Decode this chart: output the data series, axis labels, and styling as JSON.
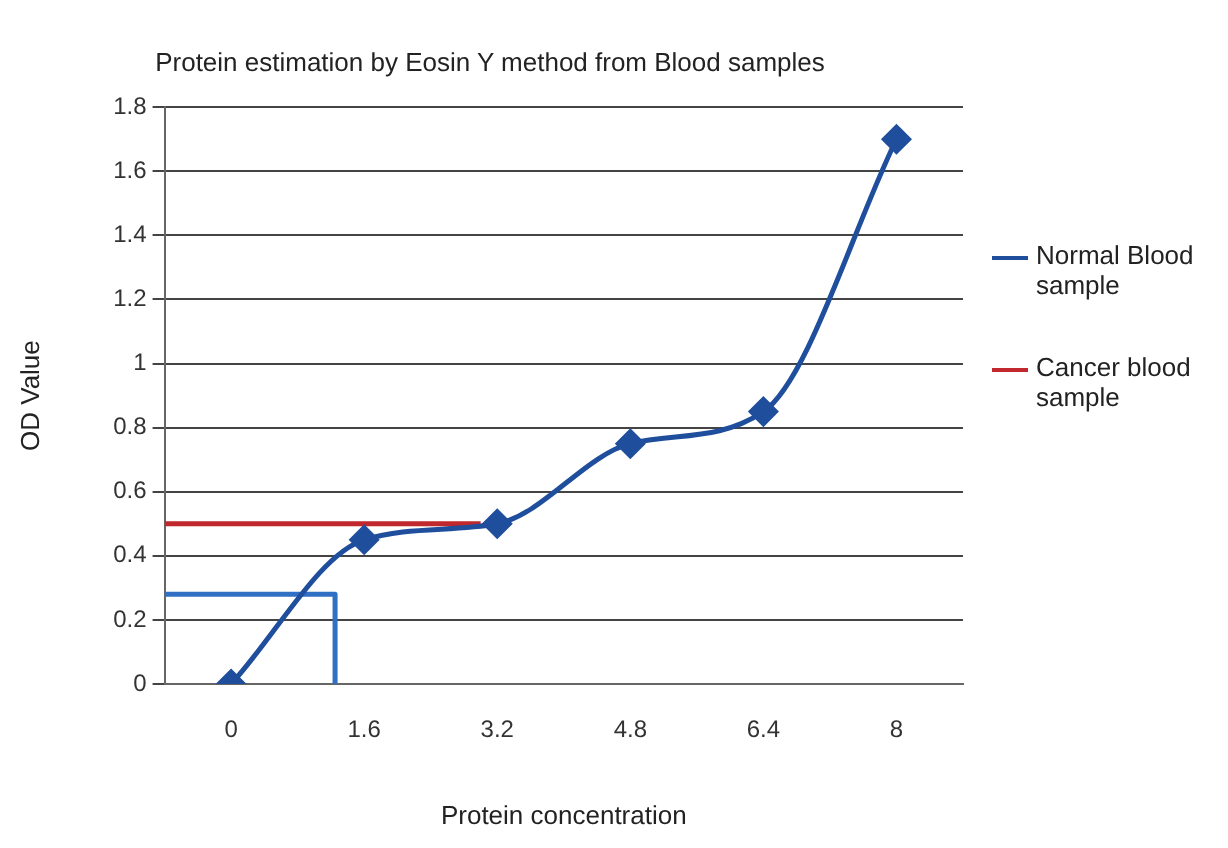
{
  "chart_data": {
    "type": "line",
    "title": "Protein estimation by Eosin Y method from Blood samples",
    "xlabel": "Protein concentration",
    "ylabel": "OD Value",
    "xlim": [
      -0.8,
      8.8
    ],
    "xticks": [
      0,
      1.6,
      3.2,
      4.8,
      6.4,
      8
    ],
    "ylim": [
      0,
      1.8
    ],
    "yticks": [
      0,
      0.2,
      0.4,
      0.6,
      0.8,
      1,
      1.2,
      1.4,
      1.6,
      1.8
    ],
    "grid": "y",
    "legend": "right",
    "line_style": "solid",
    "series": [
      {
        "name": "Normal Blood sample",
        "color": "#1f4e9c",
        "x": [
          0,
          1.6,
          3.2,
          4.8,
          6.4,
          8
        ],
        "values": [
          0,
          0.45,
          0.5,
          0.75,
          0.85,
          1.7
        ],
        "marker": "diamond"
      },
      {
        "name": "Cancer blood sample",
        "color": "#c0282d",
        "x": [
          -0.8,
          3.0
        ],
        "values": [
          0.5,
          0.5
        ],
        "marker": "none"
      },
      {
        "color": "#2f6fc4",
        "x": [
          -0.8,
          1.25,
          1.25
        ],
        "values": [
          0.28,
          0.28,
          0
        ],
        "marker": "none"
      }
    ]
  }
}
